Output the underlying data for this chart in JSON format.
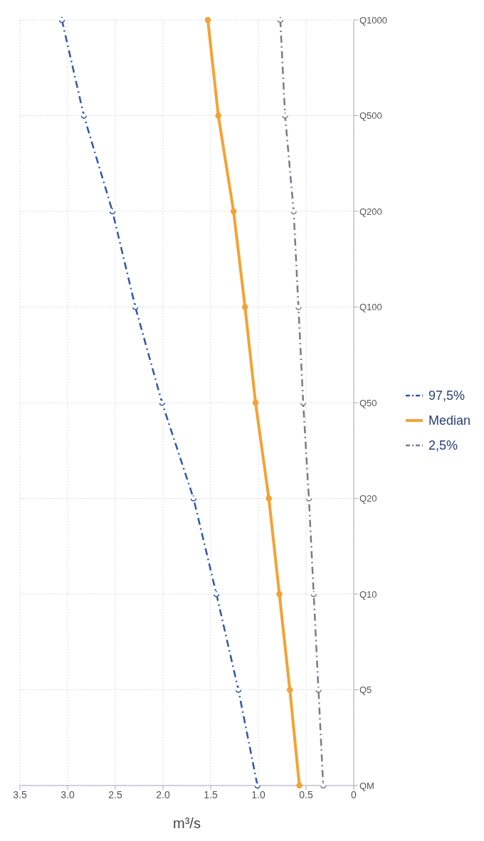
{
  "chart_data": {
    "type": "line",
    "orientation": "horizontal",
    "xlabel": "m³/s",
    "categories": [
      "Q1000",
      "Q500",
      "Q200",
      "Q100",
      "Q50",
      "Q20",
      "Q10",
      "Q5",
      "QM"
    ],
    "series": [
      {
        "name": "97,5%",
        "color": "#2f57b0",
        "line_style": "dashed",
        "values": [
          3.06,
          2.83,
          2.53,
          2.29,
          2.01,
          1.68,
          1.44,
          1.21,
          1.01
        ]
      },
      {
        "name": "Median",
        "color": "#f4a234",
        "line_style": "solid",
        "values": [
          1.53,
          1.42,
          1.26,
          1.14,
          1.03,
          0.89,
          0.78,
          0.67,
          0.57
        ]
      },
      {
        "name": "2,5%",
        "color": "#7a7a8a",
        "line_style": "dashed",
        "values": [
          0.77,
          0.72,
          0.63,
          0.58,
          0.53,
          0.47,
          0.42,
          0.37,
          0.32
        ]
      }
    ],
    "xlim": [
      3.5,
      0
    ],
    "xticks": [
      3.5,
      {
        "value": 3,
        "label": "3.0"
      },
      2.5,
      {
        "value": 2,
        "label": "2.0"
      },
      1.5,
      {
        "value": 1,
        "label": "1.0"
      },
      0.5,
      0
    ],
    "grid": true,
    "legend": "right",
    "marker": "circle"
  }
}
